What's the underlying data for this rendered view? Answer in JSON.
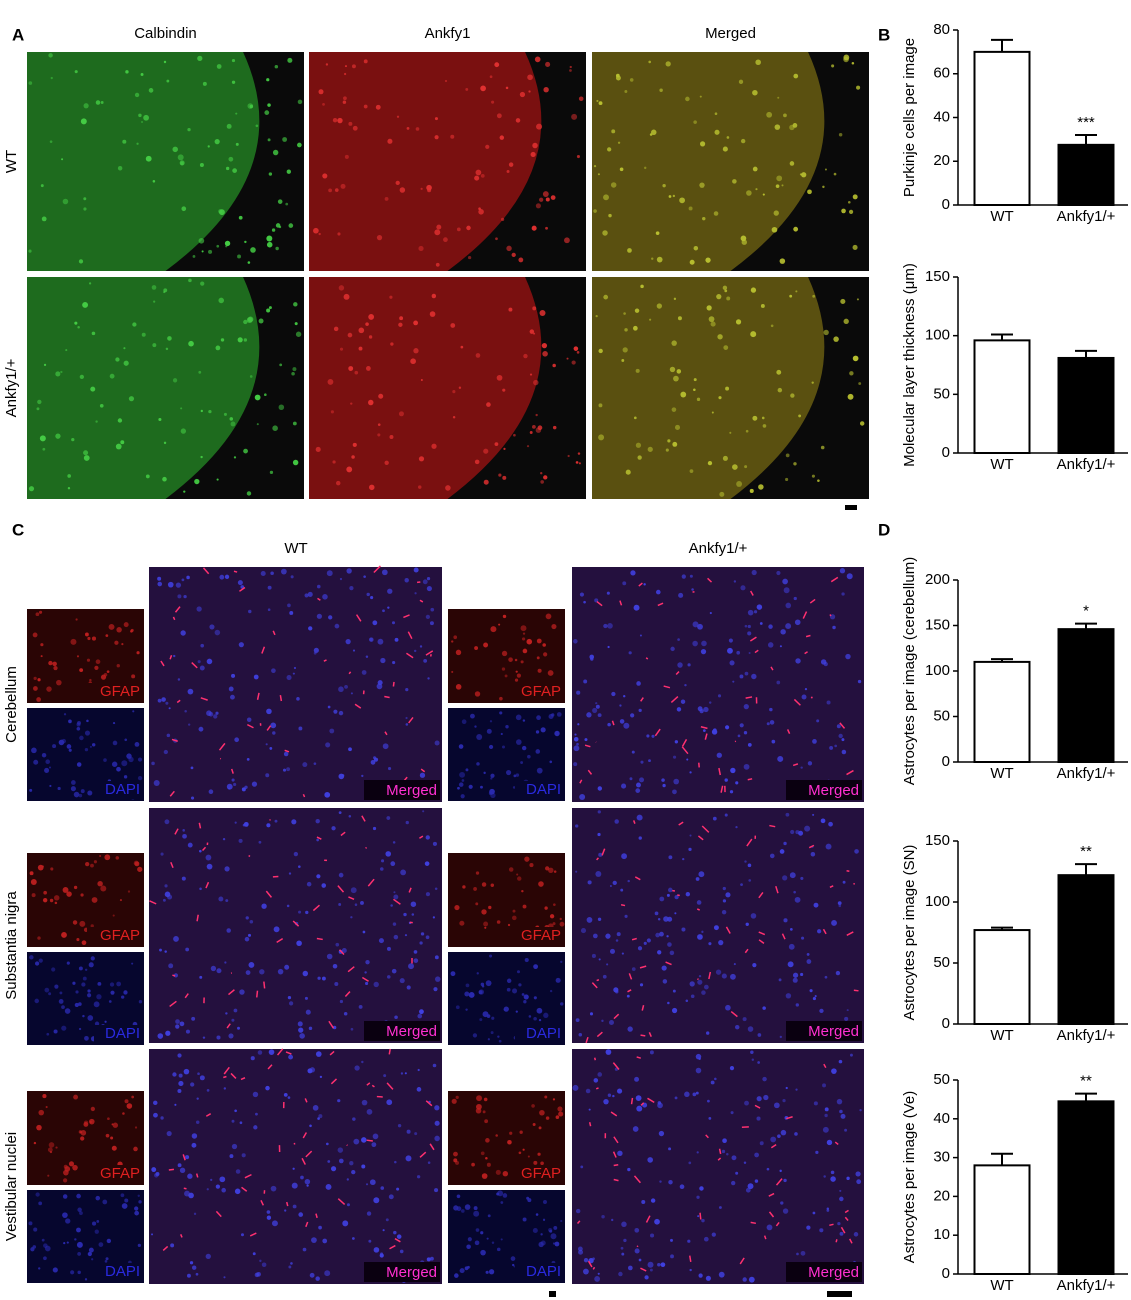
{
  "panel_labels": [
    "A",
    "B",
    "C",
    "D"
  ],
  "panel_a": {
    "columns": [
      "Calbindin",
      "Ankfy1",
      "Merged"
    ],
    "rows": [
      "WT",
      "Ankfy1/+"
    ]
  },
  "panel_c": {
    "columns": [
      "WT",
      "Ankfy1/+"
    ],
    "rows": [
      "Cerebellum",
      "Substantia nigra",
      "Vestibular nuclei"
    ],
    "channels": [
      "GFAP",
      "DAPI"
    ],
    "merged": "Merged"
  },
  "chart_data": [
    {
      "type": "bar",
      "y_label": "Purkinje cells per image",
      "categories": [
        "WT",
        "Ankfy1/+"
      ],
      "values": [
        70,
        27.5
      ],
      "errors": [
        5.5,
        4.5
      ],
      "colors": [
        "#ffffff",
        "#000000"
      ],
      "significance": [
        null,
        "***"
      ],
      "ylim": [
        0,
        80
      ],
      "yticks": [
        0,
        20,
        40,
        60,
        80
      ]
    },
    {
      "type": "bar",
      "y_label": "Molecular layer thickness (μm)",
      "categories": [
        "WT",
        "Ankfy1/+"
      ],
      "values": [
        96,
        81
      ],
      "errors": [
        5,
        6
      ],
      "colors": [
        "#ffffff",
        "#000000"
      ],
      "significance": [
        null,
        null
      ],
      "ylim": [
        0,
        150
      ],
      "yticks": [
        0,
        50,
        100,
        150
      ]
    },
    {
      "type": "bar",
      "y_label": "Astrocytes per image (cerebellum)",
      "categories": [
        "WT",
        "Ankfy1/+"
      ],
      "values": [
        110,
        146
      ],
      "errors": [
        3,
        6
      ],
      "colors": [
        "#ffffff",
        "#000000"
      ],
      "significance": [
        null,
        "*"
      ],
      "ylim": [
        0,
        200
      ],
      "yticks": [
        0,
        50,
        100,
        150,
        200
      ]
    },
    {
      "type": "bar",
      "y_label": "Astrocytes per image (SN)",
      "categories": [
        "WT",
        "Ankfy1/+"
      ],
      "values": [
        77,
        122
      ],
      "errors": [
        2,
        9
      ],
      "colors": [
        "#ffffff",
        "#000000"
      ],
      "significance": [
        null,
        "**"
      ],
      "ylim": [
        0,
        150
      ],
      "yticks": [
        0,
        50,
        100,
        150
      ]
    },
    {
      "type": "bar",
      "y_label": "Astrocytes per image (Ve)",
      "categories": [
        "WT",
        "Ankfy1/+"
      ],
      "values": [
        28,
        44.5
      ],
      "errors": [
        3,
        2
      ],
      "colors": [
        "#ffffff",
        "#000000"
      ],
      "significance": [
        null,
        "**"
      ],
      "ylim": [
        0,
        50
      ],
      "yticks": [
        0,
        10,
        20,
        30,
        40,
        50
      ]
    }
  ]
}
